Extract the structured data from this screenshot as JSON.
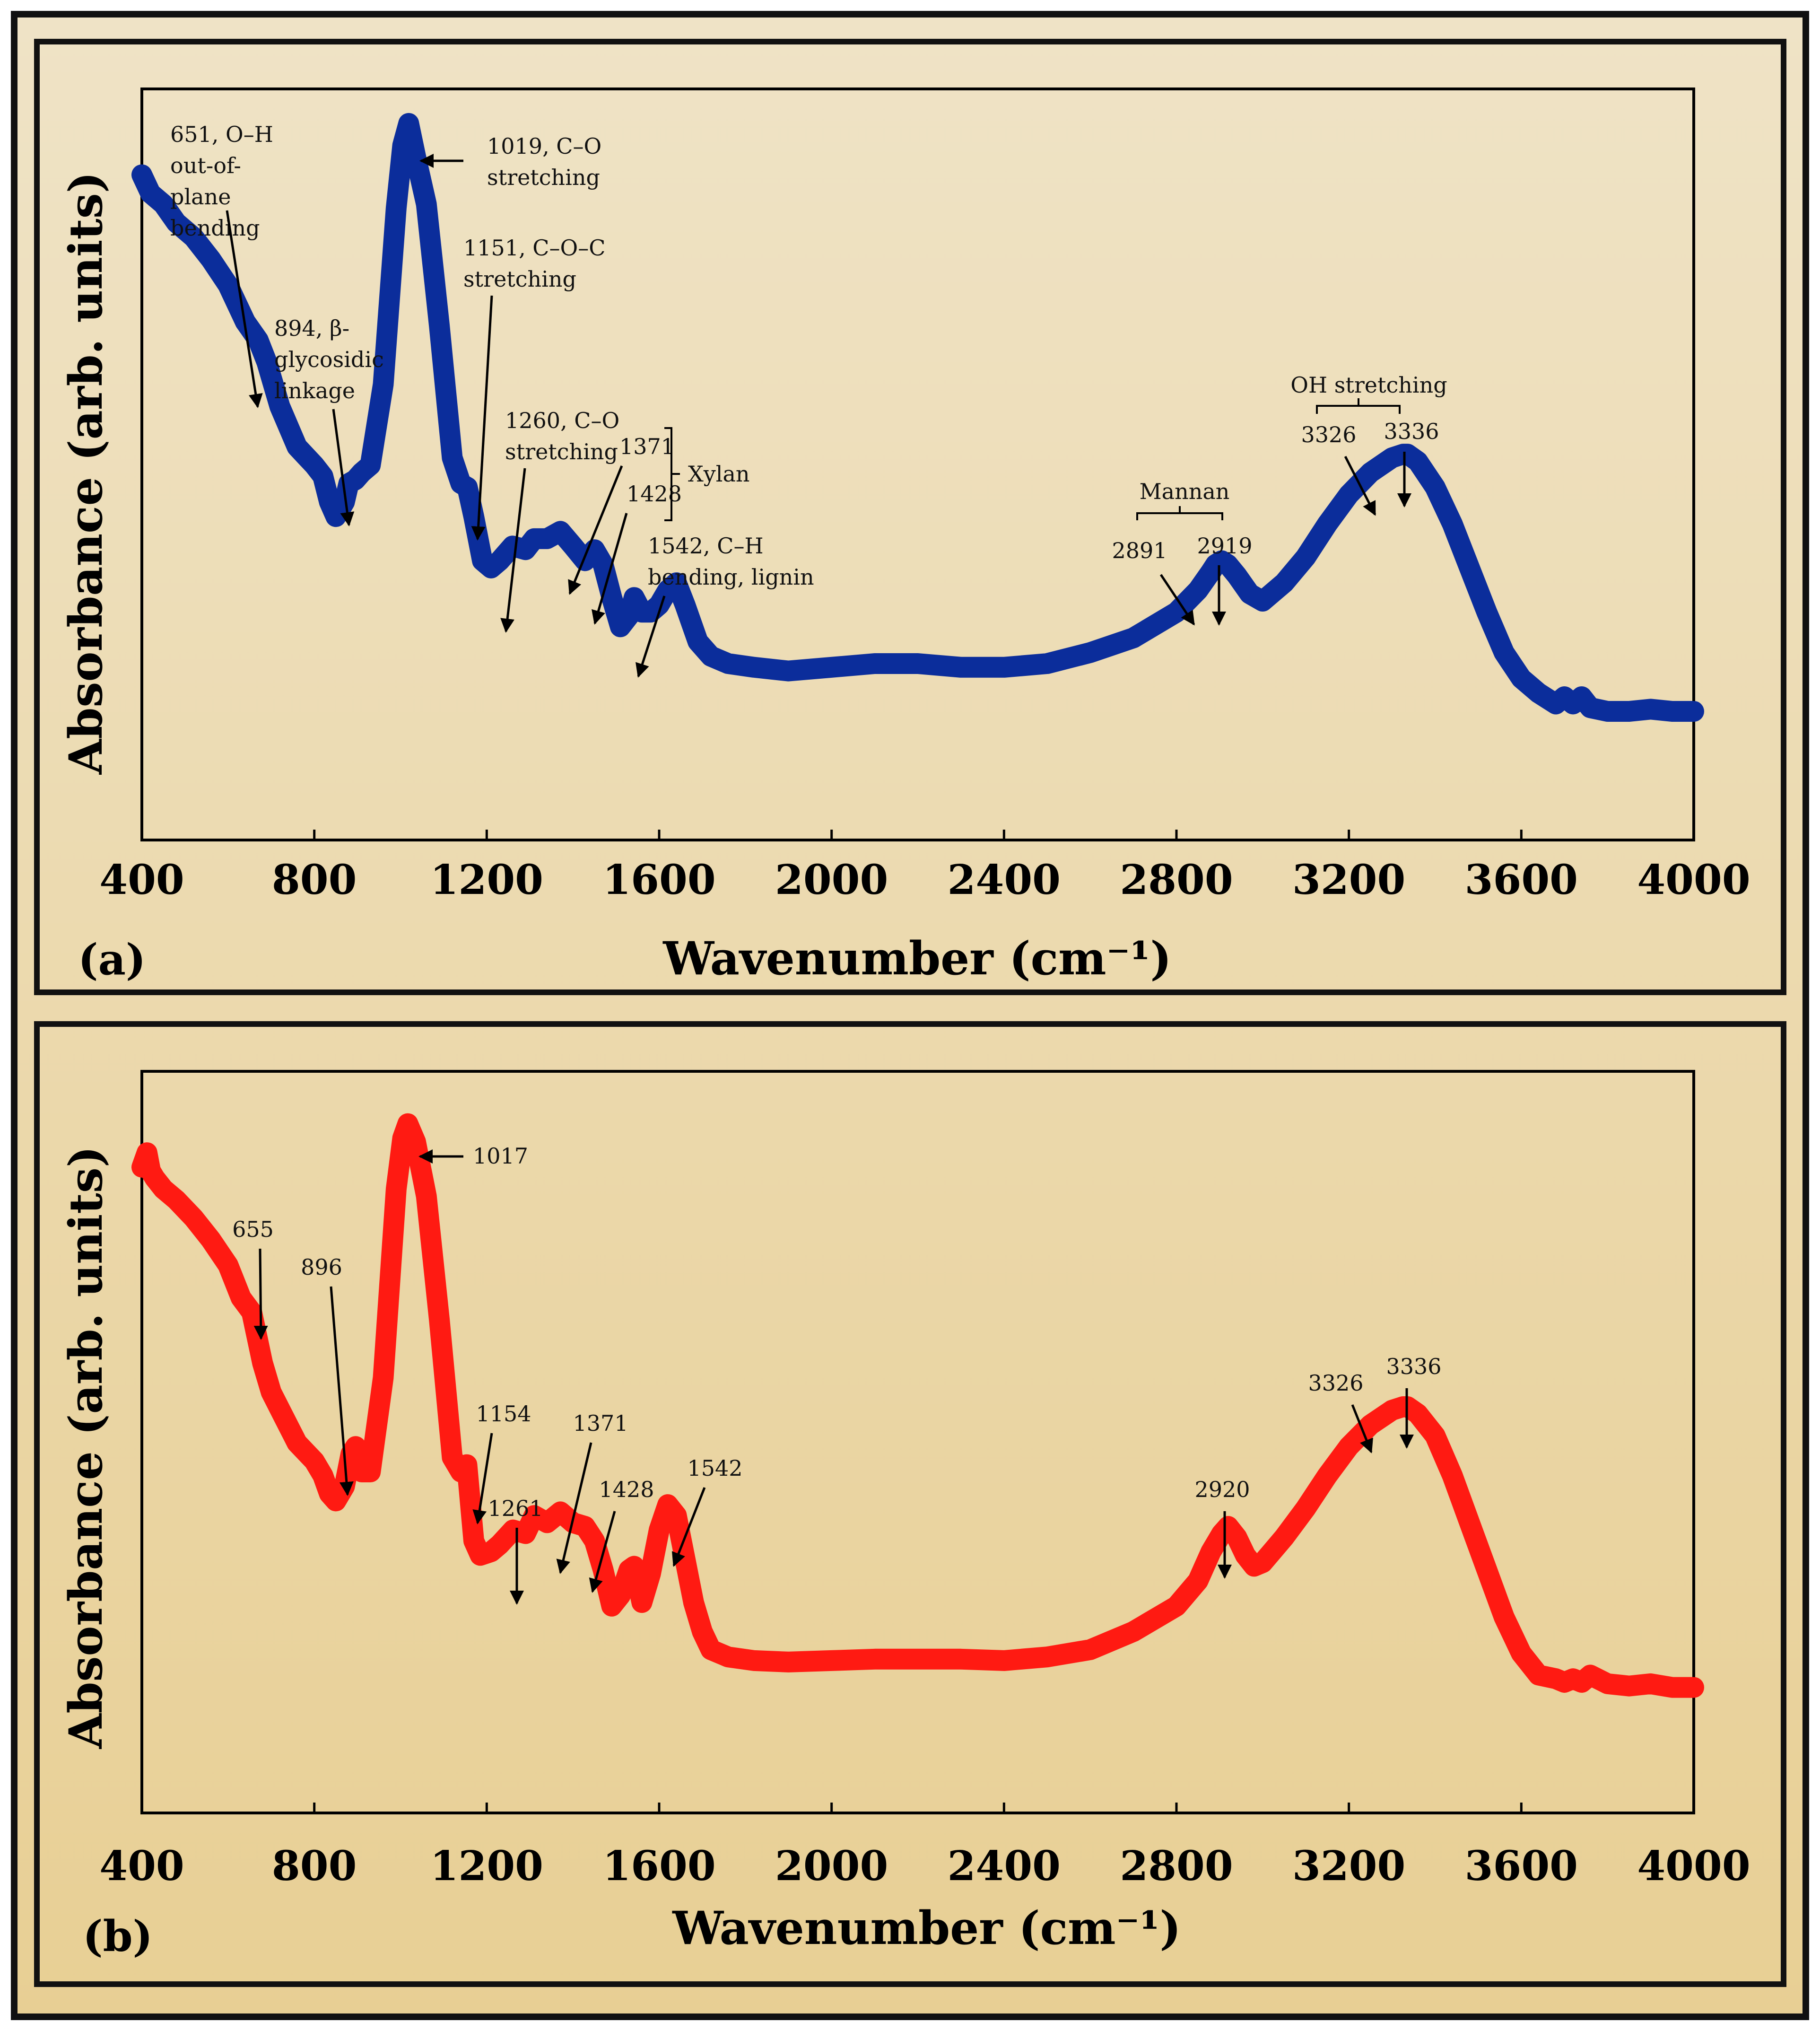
{
  "figure": {
    "background_top": "#efe3c6",
    "background_bottom": "#e8cf94",
    "frame_color": "#111111"
  },
  "chart_data": [
    {
      "type": "line",
      "panel_label": "(a)",
      "xlabel": "Wavenumber (cm⁻¹)",
      "ylabel": "Absorbance (arb. units)",
      "xlim": [
        400,
        4000
      ],
      "ylim": [
        0,
        100
      ],
      "xticks": [
        400,
        800,
        1200,
        1600,
        2000,
        2400,
        2800,
        3200,
        3600,
        4000
      ],
      "series": [
        {
          "name": "spectrum a",
          "color": "#0b2d9b",
          "x": [
            400,
            420,
            450,
            480,
            520,
            560,
            600,
            640,
            670,
            690,
            720,
            760,
            800,
            820,
            835,
            850,
            870,
            880,
            895,
            910,
            930,
            960,
            990,
            1005,
            1019,
            1035,
            1060,
            1090,
            1120,
            1140,
            1155,
            1170,
            1190,
            1210,
            1230,
            1260,
            1290,
            1310,
            1340,
            1371,
            1400,
            1428,
            1450,
            1470,
            1490,
            1510,
            1530,
            1542,
            1560,
            1580,
            1600,
            1620,
            1640,
            1660,
            1690,
            1720,
            1760,
            1820,
            1900,
            2000,
            2100,
            2200,
            2300,
            2400,
            2500,
            2600,
            2700,
            2800,
            2850,
            2880,
            2891,
            2905,
            2919,
            2940,
            2970,
            3000,
            3050,
            3100,
            3150,
            3200,
            3250,
            3300,
            3326,
            3336,
            3360,
            3400,
            3440,
            3480,
            3520,
            3560,
            3600,
            3640,
            3680,
            3700,
            3720,
            3740,
            3760,
            3800,
            3850,
            3900,
            3950,
            4000
          ],
          "y": [
            90.5,
            88,
            86.5,
            84,
            82,
            79,
            75.5,
            70.5,
            68,
            65,
            59,
            53.5,
            51,
            49.5,
            46,
            44,
            46,
            48.5,
            49,
            50,
            51,
            62,
            86,
            94.5,
            97.5,
            93,
            86.5,
            70,
            52,
            48.5,
            48,
            44,
            38,
            37,
            38,
            40,
            39.5,
            41,
            41,
            42,
            40,
            38,
            39.5,
            37.5,
            33,
            29,
            30.5,
            33,
            31,
            31,
            32,
            34,
            35,
            32,
            27,
            25,
            24,
            23.5,
            23,
            23.5,
            24,
            24,
            23.5,
            23.5,
            24,
            25.5,
            27.5,
            31,
            34,
            36.5,
            37.5,
            38,
            37.5,
            36,
            33.5,
            32.5,
            35,
            38.5,
            43,
            47,
            50,
            52,
            52.5,
            52.5,
            51.5,
            48,
            43,
            37,
            31,
            25.5,
            22,
            20,
            18.5,
            19.5,
            18.5,
            19.5,
            18,
            17.5,
            17.5,
            17.8,
            17.5,
            17.5
          ]
        }
      ],
      "annotations": [
        {
          "lines": [
            "651, O–H",
            "out-of-",
            "plane",
            "bending"
          ]
        },
        {
          "lines": [
            "894, β-",
            "glycosidic",
            "linkage"
          ]
        },
        {
          "lines": [
            "1019, C–O",
            "stretching"
          ]
        },
        {
          "lines": [
            "1151, C–O–C",
            "stretching"
          ]
        },
        {
          "lines": [
            "1260, C–O",
            "stretching"
          ]
        },
        {
          "lines": [
            "1371"
          ]
        },
        {
          "lines": [
            "1428"
          ]
        },
        {
          "lines": [
            "Xylan"
          ]
        },
        {
          "lines": [
            "1542, C–H",
            "bending, lignin"
          ]
        },
        {
          "lines": [
            "Mannan"
          ]
        },
        {
          "lines": [
            "2891"
          ]
        },
        {
          "lines": [
            "2919"
          ]
        },
        {
          "lines": [
            "OH stretching"
          ]
        },
        {
          "lines": [
            "3326"
          ]
        },
        {
          "lines": [
            "3336"
          ]
        }
      ]
    },
    {
      "type": "line",
      "panel_label": "(b)",
      "xlabel": "Wavenumber (cm⁻¹)",
      "ylabel": "Absorbance (arb. units)",
      "xlim": [
        400,
        4000
      ],
      "ylim": [
        0,
        100
      ],
      "xticks": [
        400,
        800,
        1200,
        1600,
        2000,
        2400,
        2800,
        3200,
        3600,
        4000
      ],
      "series": [
        {
          "name": "spectrum b",
          "color": "#ff1a12",
          "x": [
            400,
            412,
            420,
            430,
            450,
            480,
            520,
            560,
            600,
            630,
            655,
            680,
            700,
            730,
            760,
            800,
            820,
            835,
            850,
            870,
            885,
            896,
            910,
            930,
            960,
            990,
            1005,
            1017,
            1035,
            1060,
            1090,
            1120,
            1140,
            1154,
            1170,
            1185,
            1210,
            1230,
            1261,
            1290,
            1310,
            1340,
            1371,
            1400,
            1428,
            1450,
            1470,
            1490,
            1510,
            1530,
            1542,
            1560,
            1580,
            1600,
            1620,
            1640,
            1660,
            1680,
            1700,
            1720,
            1760,
            1820,
            1900,
            2000,
            2100,
            2200,
            2300,
            2400,
            2500,
            2600,
            2700,
            2800,
            2850,
            2880,
            2905,
            2920,
            2940,
            2960,
            2980,
            3000,
            3050,
            3100,
            3150,
            3200,
            3250,
            3300,
            3326,
            3336,
            3360,
            3400,
            3440,
            3480,
            3520,
            3560,
            3600,
            3640,
            3680,
            3700,
            3720,
            3740,
            3760,
            3800,
            3850,
            3900,
            3950,
            4000
          ],
          "y": [
            89,
            91,
            88.5,
            87.5,
            86,
            84.5,
            82,
            79,
            75.5,
            71,
            69,
            62,
            58,
            54.5,
            51,
            48.5,
            46.5,
            44,
            43,
            45,
            49.5,
            50.5,
            47,
            47,
            60,
            86,
            93,
            95,
            92.5,
            85,
            68,
            49,
            47,
            48,
            37.5,
            35.5,
            36,
            37,
            39,
            38.5,
            41,
            40,
            41.5,
            40,
            39.5,
            37.5,
            33.5,
            28.5,
            30,
            33.5,
            34,
            29,
            33,
            39,
            42.5,
            41,
            35,
            29,
            25,
            22.5,
            21.5,
            21,
            20.8,
            21,
            21.2,
            21.2,
            21.2,
            21,
            21.5,
            22.5,
            25,
            28.5,
            32,
            36,
            38.5,
            39.5,
            38,
            35.5,
            34,
            34.5,
            38,
            42,
            46.5,
            50.5,
            53.5,
            55.5,
            56,
            56,
            55,
            52,
            46.5,
            40,
            33.5,
            27,
            22,
            19,
            18.5,
            18,
            18.5,
            18,
            19,
            17.8,
            17.5,
            17.8,
            17.3,
            17.3
          ]
        }
      ],
      "annotations": [
        {
          "lines": [
            "655"
          ]
        },
        {
          "lines": [
            "896"
          ]
        },
        {
          "lines": [
            "1017"
          ]
        },
        {
          "lines": [
            "1154"
          ]
        },
        {
          "lines": [
            "1261"
          ]
        },
        {
          "lines": [
            "1371"
          ]
        },
        {
          "lines": [
            "1428"
          ]
        },
        {
          "lines": [
            "1542"
          ]
        },
        {
          "lines": [
            "2920"
          ]
        },
        {
          "lines": [
            "3326"
          ]
        },
        {
          "lines": [
            "3336"
          ]
        }
      ]
    }
  ]
}
